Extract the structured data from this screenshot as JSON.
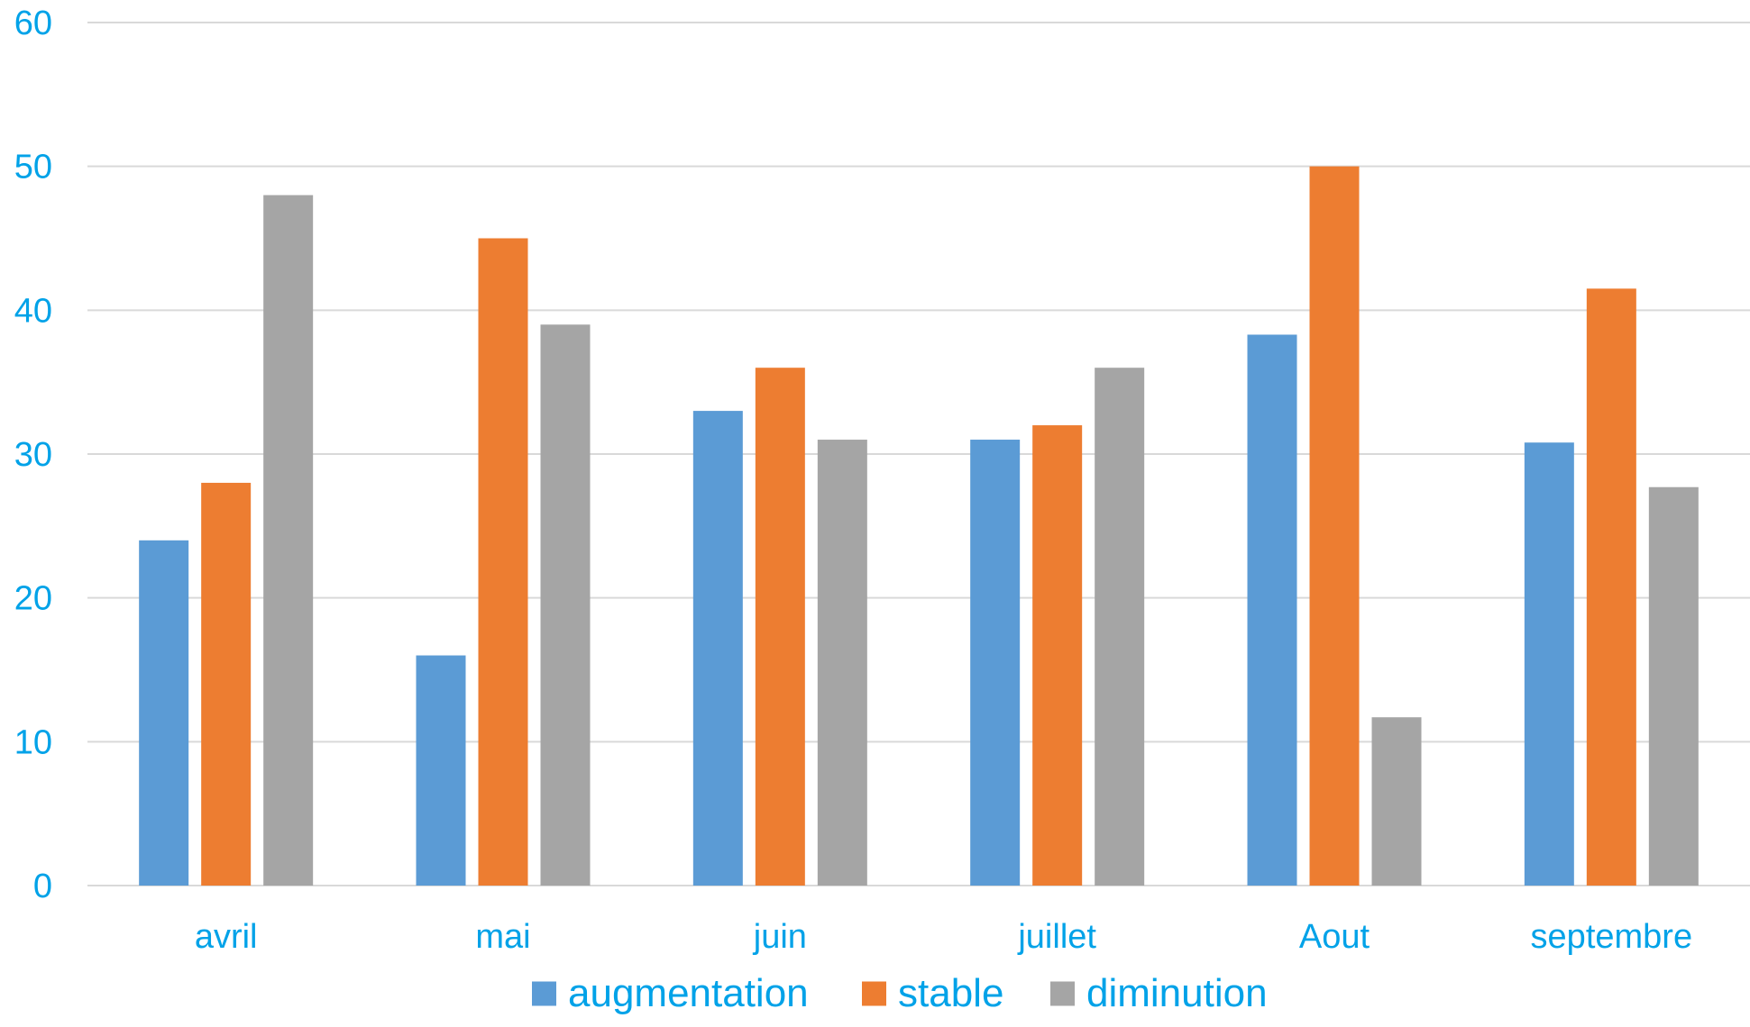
{
  "chart_data": {
    "type": "bar",
    "title": "",
    "xlabel": "",
    "ylabel": "",
    "categories": [
      "avril",
      "mai",
      "juin",
      "juillet",
      "Aout",
      "septembre"
    ],
    "series": [
      {
        "name": "augmentation",
        "color": "#5B9BD5",
        "values": [
          24,
          16,
          33,
          31,
          38.3,
          30.8
        ]
      },
      {
        "name": "stable",
        "color": "#ED7D31",
        "values": [
          28,
          45,
          36,
          32,
          50,
          41.5
        ]
      },
      {
        "name": "diminution",
        "color": "#A5A5A5",
        "values": [
          48,
          39,
          31,
          36,
          11.7,
          27.7
        ]
      }
    ],
    "ylim": [
      0,
      60
    ],
    "yticks": [
      "0",
      "10",
      "20",
      "30",
      "40",
      "50",
      "60"
    ],
    "grid": true,
    "legend_position": "bottom",
    "tick_label_color": "#00A2E8",
    "gridline_color": "#D9D9D9"
  }
}
